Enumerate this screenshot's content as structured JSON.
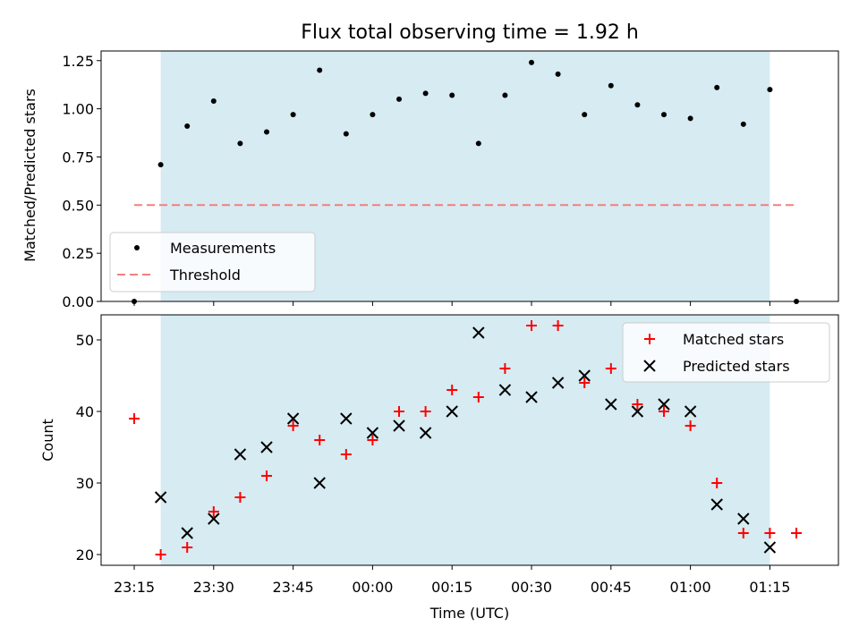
{
  "chart_data": [
    {
      "type": "scatter",
      "title": "Flux total observing time = 1.92 h",
      "xlabel": "",
      "ylabel": "Matched/Predicted stars",
      "ylim": [
        0,
        1.3
      ],
      "yticks": [
        "0.00",
        "0.25",
        "0.50",
        "0.75",
        "1.00",
        "1.25"
      ],
      "shaded_span": [
        "23:20",
        "01:15"
      ],
      "threshold": 0.5,
      "legend_position": "lower-left",
      "legend": [
        "Measurements",
        "Threshold"
      ],
      "series": [
        {
          "name": "Measurements",
          "color": "#000000",
          "x": [
            "23:15",
            "23:20",
            "23:25",
            "23:30",
            "23:35",
            "23:40",
            "23:45",
            "23:50",
            "23:55",
            "00:00",
            "00:05",
            "00:10",
            "00:15",
            "00:20",
            "00:25",
            "00:30",
            "00:35",
            "00:40",
            "00:45",
            "00:50",
            "00:55",
            "01:00",
            "01:05",
            "01:10",
            "01:15",
            "01:20"
          ],
          "values": [
            0.0,
            0.71,
            0.91,
            1.04,
            0.82,
            0.88,
            0.97,
            1.2,
            0.87,
            0.97,
            1.05,
            1.08,
            1.07,
            0.82,
            1.07,
            1.24,
            1.18,
            0.97,
            1.12,
            1.02,
            0.97,
            0.95,
            1.11,
            0.92,
            1.1,
            0.0
          ]
        },
        {
          "name": "Threshold",
          "color": "#f08080",
          "x": [
            "23:15",
            "01:20"
          ],
          "values": [
            0.5,
            0.5
          ]
        }
      ]
    },
    {
      "type": "scatter",
      "title": "",
      "xlabel": "Time (UTC)",
      "ylabel": "Count",
      "ylim": [
        18.5,
        53.5
      ],
      "yticks": [
        "20",
        "30",
        "40",
        "50"
      ],
      "xticks": [
        "23:15",
        "23:30",
        "23:45",
        "00:00",
        "00:15",
        "00:30",
        "00:45",
        "01:00",
        "01:15"
      ],
      "shaded_span": [
        "23:20",
        "01:15"
      ],
      "legend_position": "upper-right",
      "legend": [
        "Matched stars",
        "Predicted stars"
      ],
      "series": [
        {
          "name": "Matched stars",
          "color": "#ff0000",
          "marker": "plus",
          "x": [
            "23:15",
            "23:20",
            "23:25",
            "23:30",
            "23:35",
            "23:40",
            "23:45",
            "23:50",
            "23:55",
            "00:00",
            "00:05",
            "00:10",
            "00:15",
            "00:20",
            "00:25",
            "00:30",
            "00:35",
            "00:40",
            "00:45",
            "00:50",
            "00:55",
            "01:00",
            "01:05",
            "01:10",
            "01:15",
            "01:20"
          ],
          "values": [
            39,
            20,
            21,
            26,
            28,
            31,
            38,
            36,
            34,
            36,
            40,
            40,
            43,
            42,
            46,
            52,
            52,
            44,
            46,
            41,
            40,
            38,
            30,
            23,
            23,
            23
          ]
        },
        {
          "name": "Predicted stars",
          "color": "#000000",
          "marker": "x",
          "x": [
            "23:20",
            "23:25",
            "23:30",
            "23:35",
            "23:40",
            "23:45",
            "23:50",
            "23:55",
            "00:00",
            "00:05",
            "00:10",
            "00:15",
            "00:20",
            "00:25",
            "00:30",
            "00:35",
            "00:40",
            "00:45",
            "00:50",
            "00:55",
            "01:00",
            "01:05",
            "01:10",
            "01:15"
          ],
          "values": [
            28,
            23,
            25,
            34,
            35,
            39,
            30,
            39,
            37,
            38,
            37,
            40,
            51,
            43,
            42,
            44,
            45,
            41,
            40,
            41,
            40,
            27,
            25,
            21
          ]
        }
      ]
    }
  ]
}
